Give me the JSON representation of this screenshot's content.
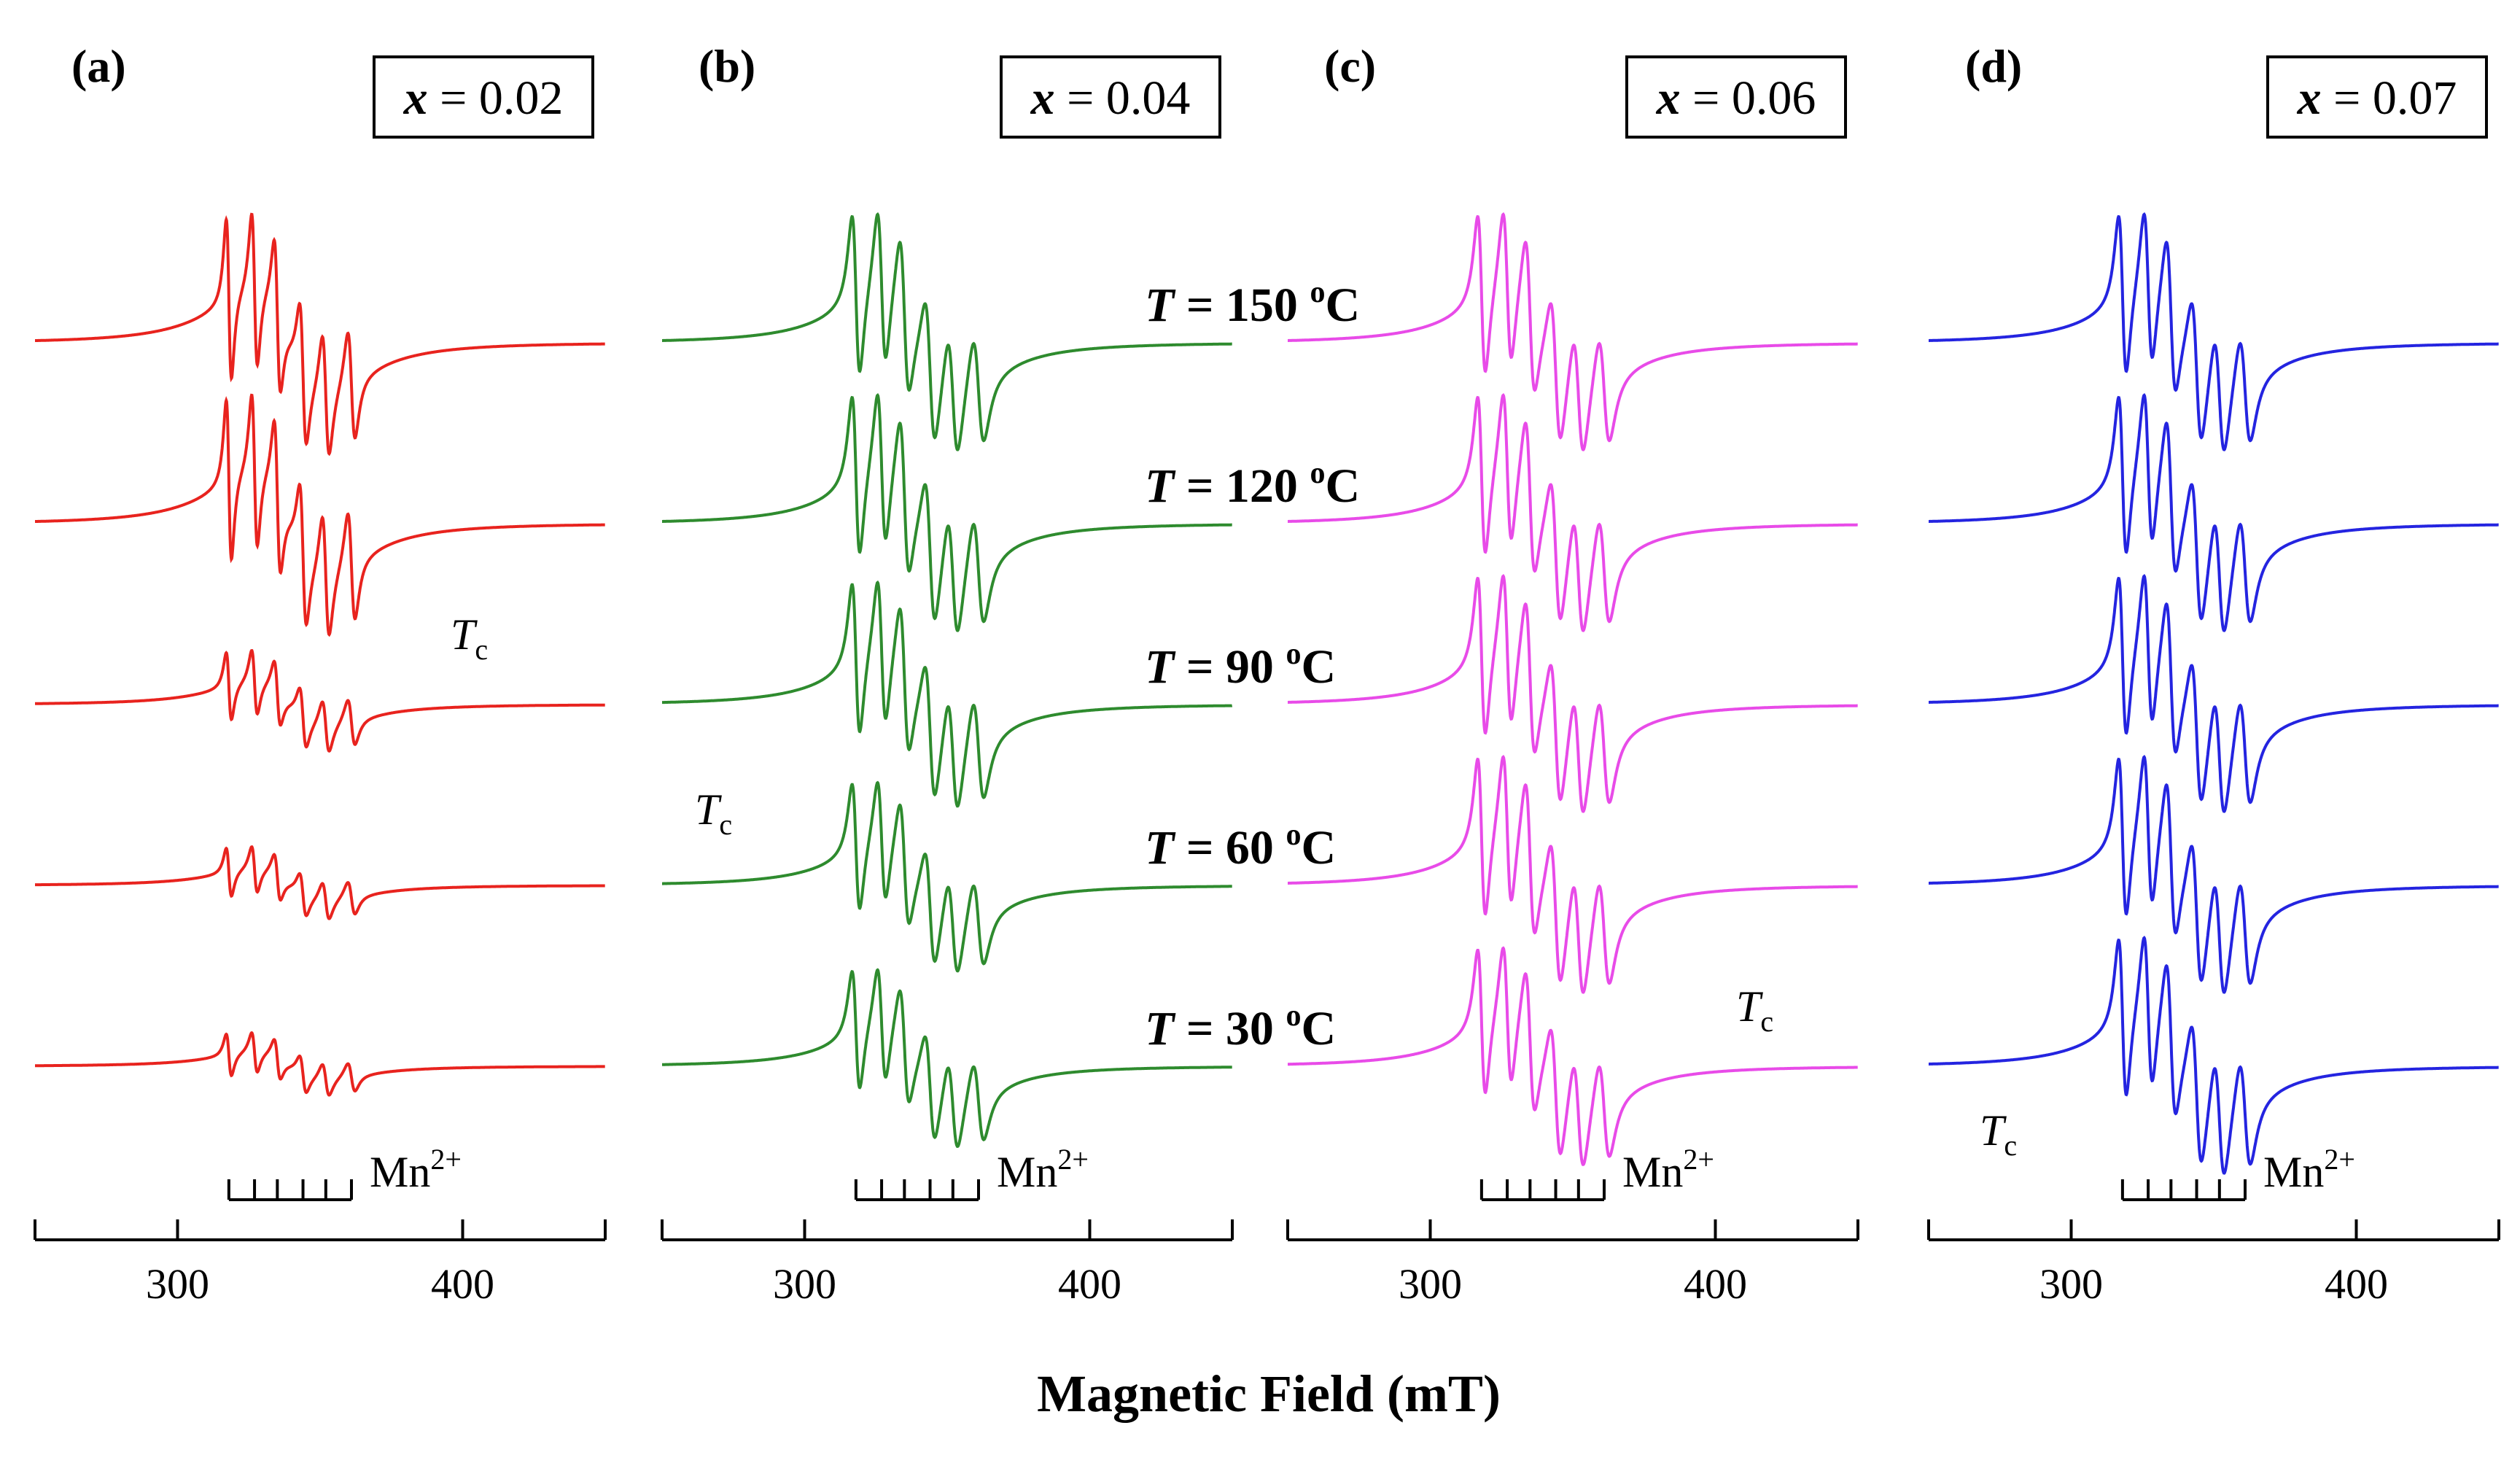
{
  "figure": {
    "xlabel": "Magnetic Field (mT)",
    "temperature_labels": [
      {
        "T": "T",
        "value": " = 150 ",
        "unit": "C",
        "deg": "o"
      },
      {
        "T": "T",
        "value": " = 120 ",
        "unit": "C",
        "deg": "o"
      },
      {
        "T": "T",
        "value": " = 90 ",
        "unit": "C",
        "deg": "o"
      },
      {
        "T": "T",
        "value": " = 60 ",
        "unit": "C",
        "deg": "o"
      },
      {
        "T": "T",
        "value": " = 30 ",
        "unit": "C",
        "deg": "o"
      }
    ],
    "tc_text": {
      "main": "T",
      "sub": "c"
    },
    "mn_text": {
      "main": "Mn",
      "sup": "2+"
    }
  },
  "chart_data": [
    {
      "type": "line",
      "panel": "(a)",
      "x_var": "x",
      "x_value": " = 0.02",
      "color": "#e8231e",
      "xlim": [
        250,
        450
      ],
      "xticks": [
        300,
        400
      ],
      "tick_labels": [
        "300",
        "400"
      ],
      "temperatures_C": [
        150,
        120,
        90,
        60,
        30
      ],
      "relative_amplitudes": [
        1.0,
        1.0,
        0.42,
        0.3,
        0.26
      ],
      "mn_hyperfine_lines_mT": [
        318,
        327,
        335,
        344,
        352,
        361
      ],
      "tc_between": [
        120,
        90
      ]
    },
    {
      "type": "line",
      "panel": "(b)",
      "x_var": "x",
      "x_value": " = 0.04",
      "color": "#2e8b2e",
      "xlim": [
        250,
        450
      ],
      "xticks": [
        300,
        400
      ],
      "tick_labels": [
        "300",
        "400"
      ],
      "temperatures_C": [
        150,
        120,
        90,
        60,
        30
      ],
      "relative_amplitudes": [
        1.0,
        1.0,
        0.95,
        0.8,
        0.75
      ],
      "mn_hyperfine_lines_mT": [
        318,
        327,
        335,
        344,
        352,
        361
      ],
      "tc_between": [
        90,
        60
      ]
    },
    {
      "type": "line",
      "panel": "(c)",
      "x_var": "x",
      "x_value": " = 0.06",
      "color": "#e84be8",
      "xlim": [
        250,
        450
      ],
      "xticks": [
        300,
        400
      ],
      "tick_labels": [
        "300",
        "400"
      ],
      "temperatures_C": [
        150,
        120,
        90,
        60,
        30
      ],
      "relative_amplitudes": [
        1.0,
        1.0,
        1.0,
        1.0,
        0.92
      ],
      "mn_hyperfine_lines_mT": [
        318,
        327,
        335,
        344,
        352,
        361
      ],
      "tc_between": [
        60,
        30
      ]
    },
    {
      "type": "line",
      "panel": "(d)",
      "x_var": "x",
      "x_value": " = 0.07",
      "color": "#2424e0",
      "xlim": [
        250,
        450
      ],
      "xticks": [
        300,
        400
      ],
      "tick_labels": [
        "300",
        "400"
      ],
      "temperatures_C": [
        150,
        120,
        90,
        60,
        30
      ],
      "relative_amplitudes": [
        1.0,
        1.0,
        1.0,
        1.0,
        1.0
      ],
      "mn_hyperfine_lines_mT": [
        318,
        327,
        335,
        344,
        352,
        361
      ],
      "tc_between": [
        30,
        "below"
      ]
    }
  ]
}
